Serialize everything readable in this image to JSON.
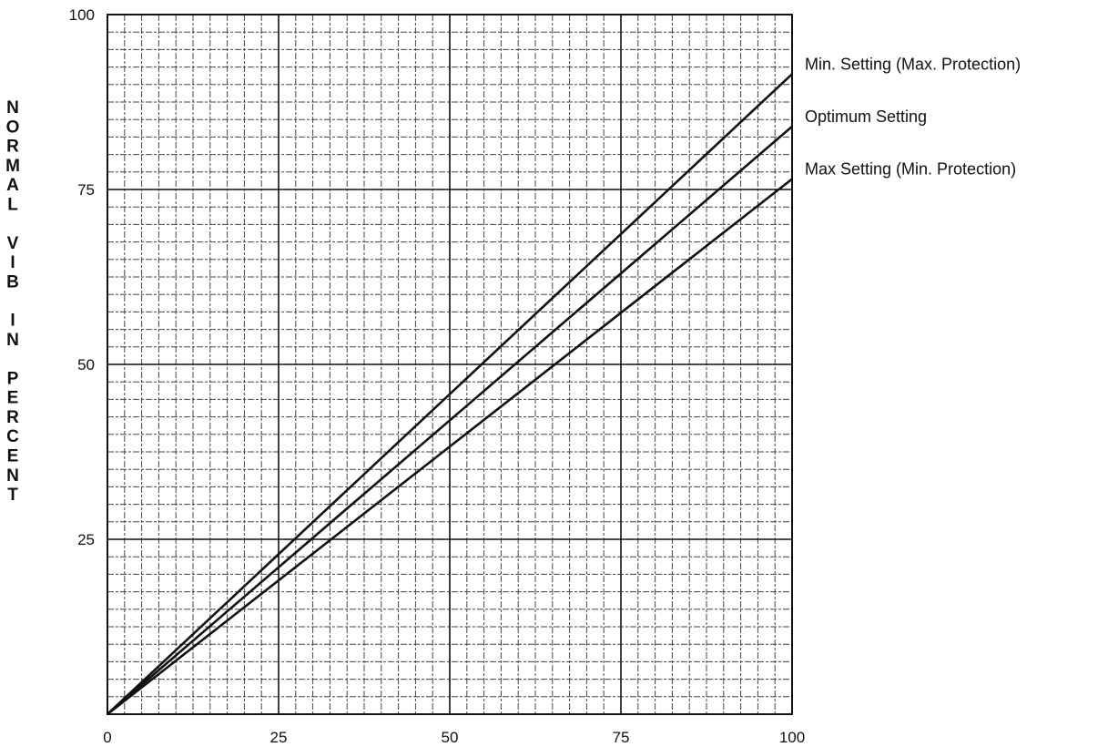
{
  "chart_data": {
    "type": "line",
    "title": "",
    "xlabel": "",
    "ylabel": "NORMAL VIB IN PERCENT",
    "xlim": [
      0,
      100
    ],
    "ylim": [
      0,
      100
    ],
    "x_ticks": [
      0,
      25,
      50,
      75,
      100
    ],
    "y_ticks": [
      25,
      50,
      75,
      100
    ],
    "grid": true,
    "legend_position": "right",
    "series": [
      {
        "name": "Min. Setting (Max. Protection)",
        "x": [
          0,
          100
        ],
        "y": [
          0,
          91.5
        ]
      },
      {
        "name": "Optimum Setting",
        "x": [
          0,
          100
        ],
        "y": [
          0,
          84
        ]
      },
      {
        "name": "Max Setting (Min. Protection)",
        "x": [
          0,
          100
        ],
        "y": [
          0,
          76.5
        ]
      }
    ]
  }
}
